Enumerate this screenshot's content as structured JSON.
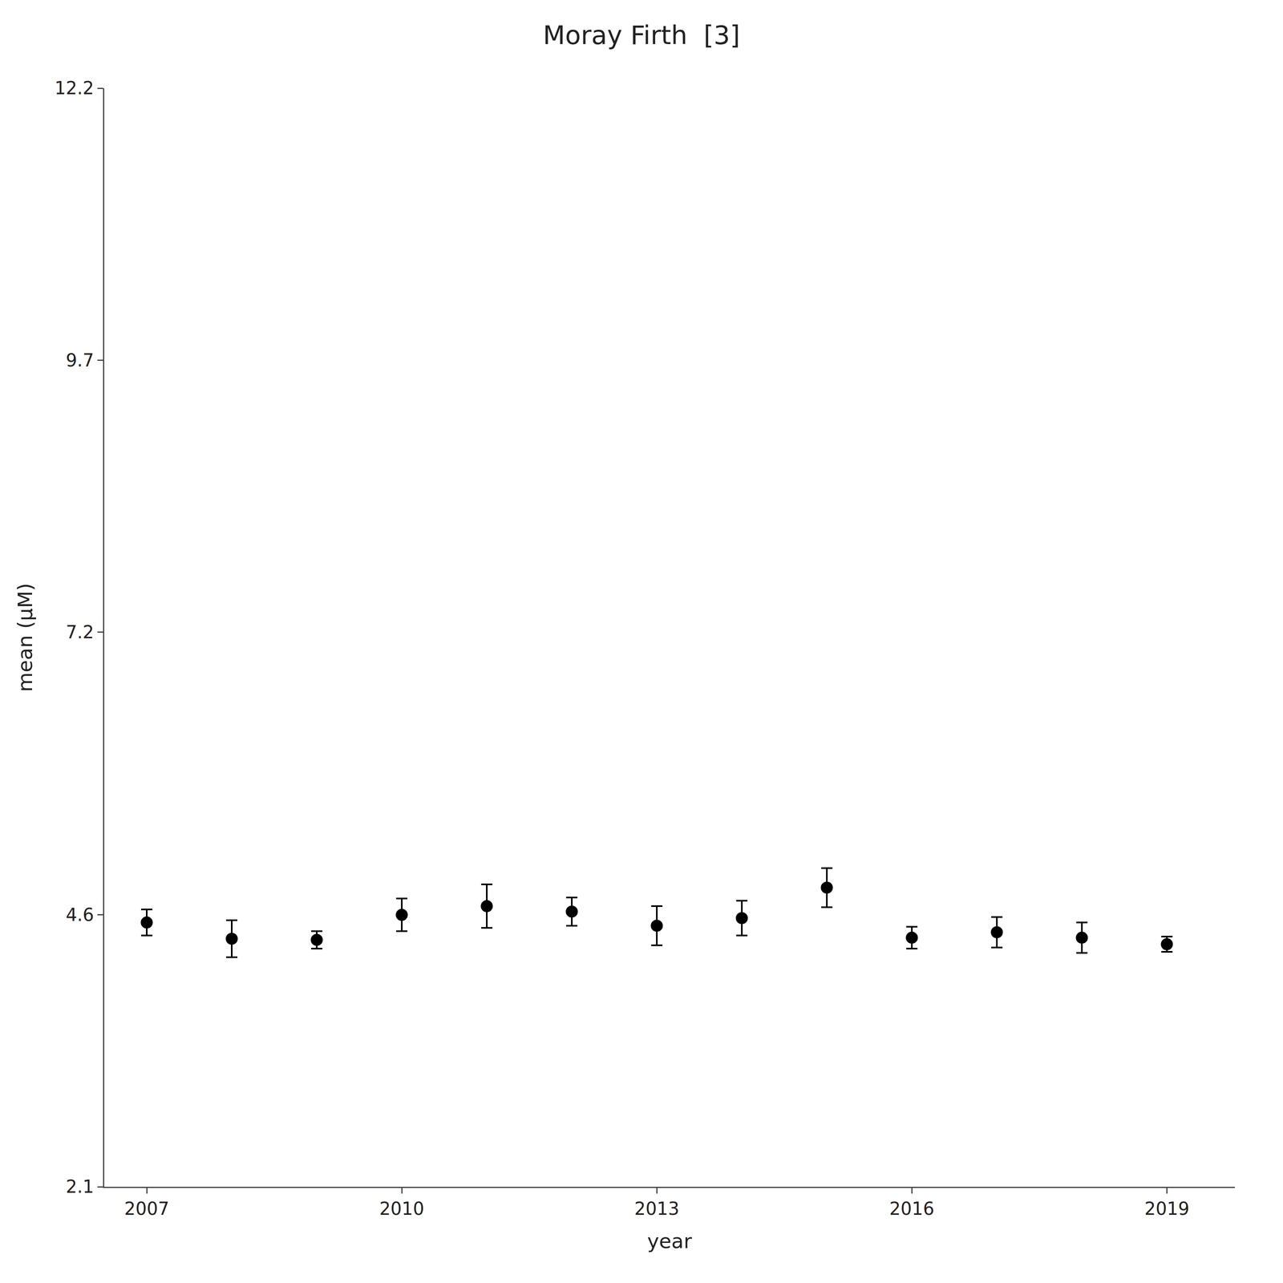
{
  "chart_data": {
    "type": "scatter",
    "title": "Moray Firth  [3]",
    "xlabel": "year",
    "ylabel": "mean (μM)",
    "x": [
      2007,
      2008,
      2009,
      2010,
      2011,
      2012,
      2013,
      2014,
      2015,
      2016,
      2017,
      2018,
      2019
    ],
    "values": [
      4.53,
      4.38,
      4.37,
      4.6,
      4.68,
      4.63,
      4.5,
      4.57,
      4.85,
      4.39,
      4.44,
      4.39,
      4.33
    ],
    "err_low": [
      0.12,
      0.17,
      0.08,
      0.15,
      0.2,
      0.13,
      0.18,
      0.16,
      0.18,
      0.1,
      0.14,
      0.14,
      0.07
    ],
    "err_high": [
      0.12,
      0.17,
      0.08,
      0.15,
      0.2,
      0.13,
      0.18,
      0.16,
      0.18,
      0.1,
      0.14,
      0.14,
      0.07
    ],
    "color": "#000000",
    "marker": "circle",
    "xlim": [
      2006.5,
      2019.8
    ],
    "xticks": [
      2007,
      2010,
      2013,
      2016,
      2019
    ],
    "ylim": [
      2.1,
      12.2
    ],
    "yticks": [
      2.1,
      4.6,
      7.2,
      9.7,
      12.2
    ],
    "grid": false
  }
}
